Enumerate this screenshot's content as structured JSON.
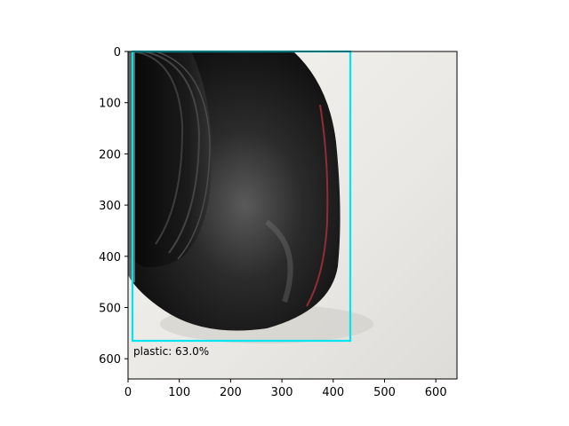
{
  "figure": {
    "x_ticks": [
      "0",
      "100",
      "200",
      "300",
      "400",
      "500",
      "600"
    ],
    "y_ticks": [
      "0",
      "100",
      "200",
      "300",
      "400",
      "500",
      "600"
    ],
    "detection": {
      "label": "plastic: 63.0%",
      "box_color": "#00e5ee"
    },
    "image_subject": "black-plastic-bottle-icon"
  }
}
